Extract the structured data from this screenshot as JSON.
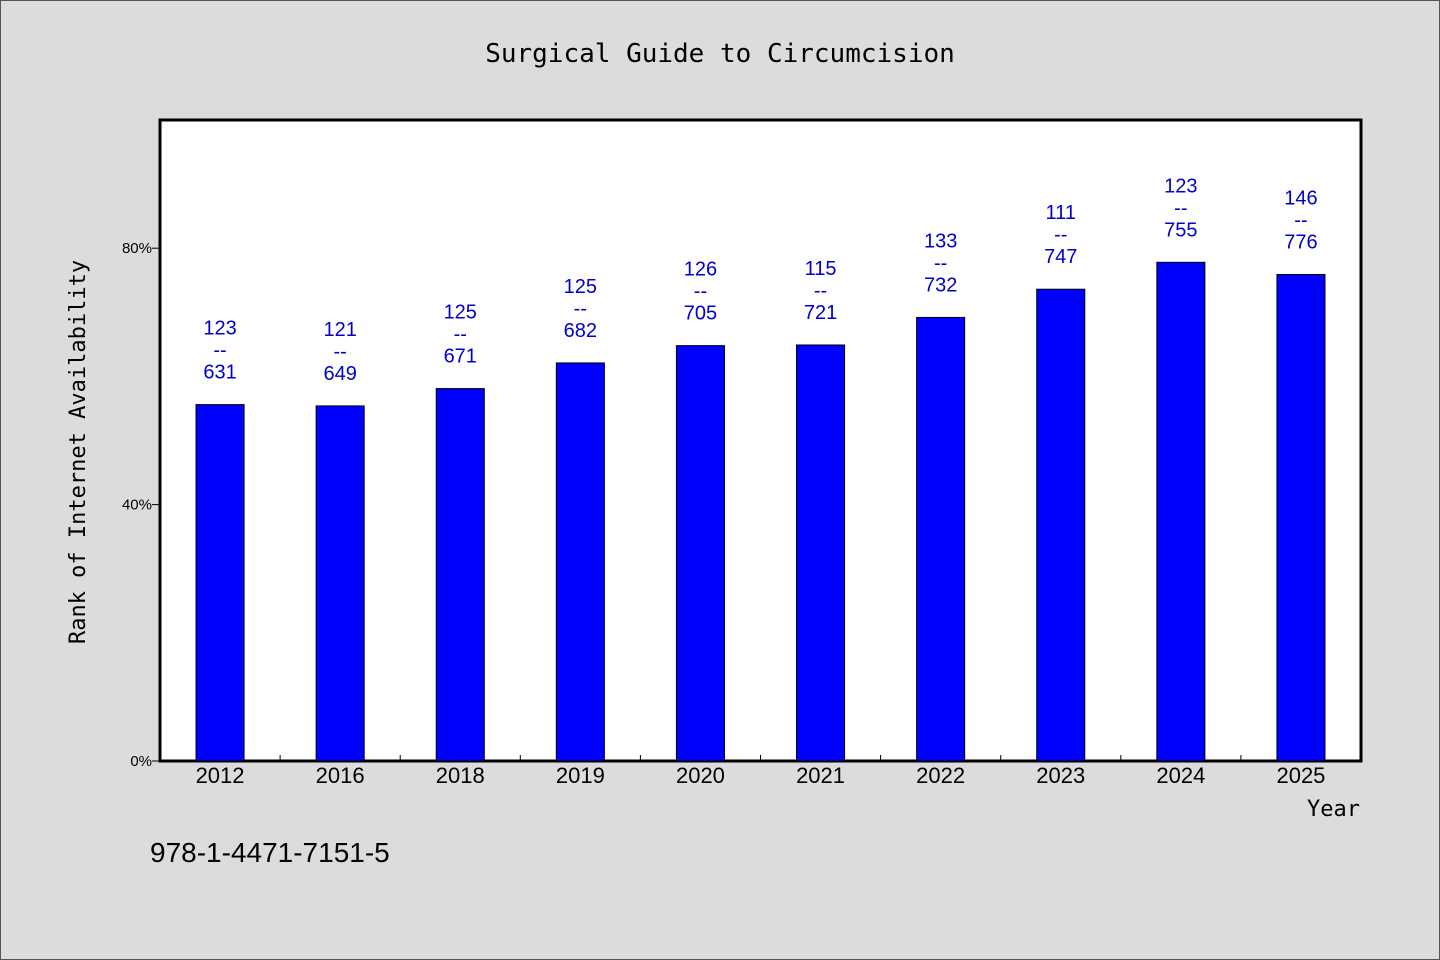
{
  "chart_data": {
    "type": "bar",
    "title": "Surgical Guide to Circumcision",
    "xlabel": "Year",
    "ylabel": "Rank of Internet Availability",
    "categories": [
      "2012",
      "2016",
      "2018",
      "2019",
      "2020",
      "2021",
      "2022",
      "2023",
      "2024",
      "2025"
    ],
    "values": [
      55.6,
      55.4,
      58.1,
      62.1,
      64.8,
      64.9,
      69.2,
      73.6,
      77.8,
      75.9
    ],
    "value_unit": "%",
    "data_labels": [
      {
        "top": "123",
        "mid": "--",
        "bottom": "631"
      },
      {
        "top": "121",
        "mid": "--",
        "bottom": "649"
      },
      {
        "top": "125",
        "mid": "--",
        "bottom": "671"
      },
      {
        "top": "125",
        "mid": "--",
        "bottom": "682"
      },
      {
        "top": "126",
        "mid": "--",
        "bottom": "705"
      },
      {
        "top": "115",
        "mid": "--",
        "bottom": "721"
      },
      {
        "top": "133",
        "mid": "--",
        "bottom": "732"
      },
      {
        "top": "111",
        "mid": "--",
        "bottom": "747"
      },
      {
        "top": "123",
        "mid": "--",
        "bottom": "755"
      },
      {
        "top": "146",
        "mid": "--",
        "bottom": "776"
      }
    ],
    "yticks": [
      0,
      40,
      80
    ],
    "ytick_labels": [
      "0%",
      "40%",
      "80%"
    ],
    "ylim": [
      0,
      100
    ],
    "grid": false,
    "legend": "none",
    "colors": {
      "bar": "#0000ff",
      "bar_edge": "#000000",
      "data_label": "#0000cc",
      "plot_bg": "#ffffff",
      "page_bg": "#dcdcdc"
    }
  },
  "footer_note": "978-1-4471-7151-5"
}
